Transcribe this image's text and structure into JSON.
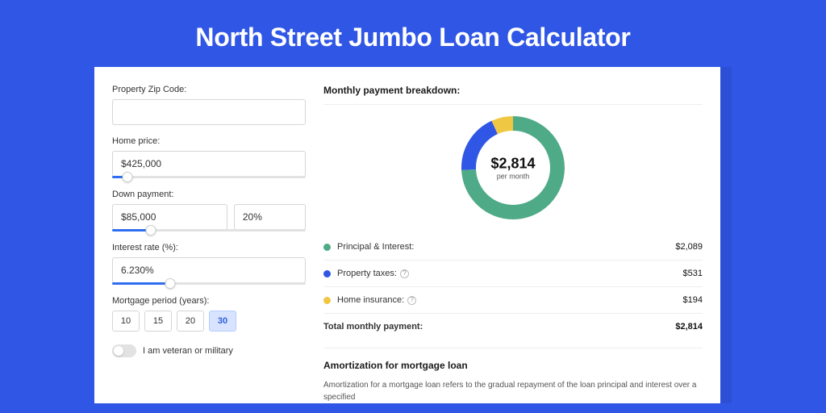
{
  "banner": {
    "title": "North Street Jumbo Loan Calculator",
    "bg_color": "#3056e6",
    "title_color": "#ffffff",
    "title_fontsize": 32
  },
  "form": {
    "zip": {
      "label": "Property Zip Code:",
      "value": ""
    },
    "price": {
      "label": "Home price:",
      "value": "$425,000",
      "slider_pct": 8
    },
    "down": {
      "label": "Down payment:",
      "value": "$85,000",
      "pct": "20%",
      "slider_pct": 20
    },
    "rate": {
      "label": "Interest rate (%):",
      "value": "6.230%",
      "slider_pct": 30
    },
    "period": {
      "label": "Mortgage period (years):",
      "options": [
        "10",
        "15",
        "20",
        "30"
      ],
      "selected": "30"
    },
    "veteran": {
      "label": "I am veteran or military",
      "on": false
    }
  },
  "breakdown": {
    "title": "Monthly payment breakdown:",
    "donut": {
      "amount": "$2,814",
      "sub": "per month",
      "segments": [
        {
          "name": "principal_interest",
          "value": 2089,
          "color": "#4fab87",
          "pct": 74.2
        },
        {
          "name": "property_taxes",
          "value": 531,
          "color": "#3056e6",
          "pct": 18.9
        },
        {
          "name": "home_insurance",
          "value": 194,
          "color": "#f0c742",
          "pct": 6.9
        }
      ],
      "ring_width": 18,
      "radius": 55
    },
    "rows": [
      {
        "dot": "#4fab87",
        "label": "Principal & Interest:",
        "info": false,
        "value": "$2,089"
      },
      {
        "dot": "#3056e6",
        "label": "Property taxes:",
        "info": true,
        "value": "$531"
      },
      {
        "dot": "#f0c742",
        "label": "Home insurance:",
        "info": true,
        "value": "$194"
      }
    ],
    "total": {
      "label": "Total monthly payment:",
      "value": "$2,814"
    }
  },
  "amortization": {
    "title": "Amortization for mortgage loan",
    "text": "Amortization for a mortgage loan refers to the gradual repayment of the loan principal and interest over a specified"
  }
}
